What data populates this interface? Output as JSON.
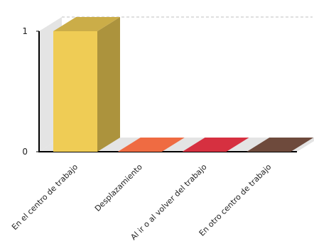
{
  "chart_data": {
    "type": "bar",
    "style": "3d",
    "title": "",
    "xlabel": "",
    "ylabel": "",
    "ylim": [
      0,
      1
    ],
    "yticks": [
      0,
      1
    ],
    "grid": true,
    "legend": "none",
    "categories": [
      "En el centro de trabajo",
      "Desplazamiento",
      "Al ir o al volver del trabajo",
      "En otro centro de trabajo"
    ],
    "values": [
      1,
      0,
      0,
      0
    ],
    "colors": [
      "#efcc55",
      "#ef6b42",
      "#d63040",
      "#6e4a3c"
    ]
  }
}
